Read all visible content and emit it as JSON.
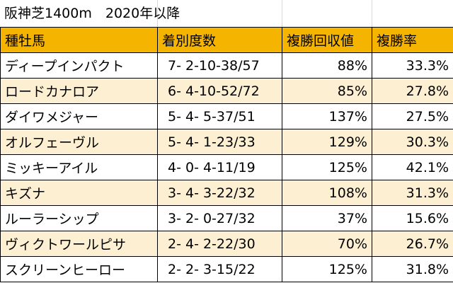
{
  "title": "阪神芝1400m　2020年以降",
  "colors": {
    "header_bg": "#f5b400",
    "alt_row_bg": "#fdf0d2",
    "row_bg": "#ffffff",
    "border": "#000000"
  },
  "table": {
    "headers": [
      "種牡馬",
      "着別度数",
      "複勝回収値",
      "複勝率"
    ],
    "rows": [
      {
        "sire": "ディープインパクト",
        "record": "7- 2-10-38/57",
        "place_return": "88%",
        "place_rate": "33.3%"
      },
      {
        "sire": "ロードカナロア",
        "record": "6- 4-10-52/72",
        "place_return": "85%",
        "place_rate": "27.8%"
      },
      {
        "sire": "ダイワメジャー",
        "record": "5- 4- 5-37/51",
        "place_return": "137%",
        "place_rate": "27.5%"
      },
      {
        "sire": "オルフェーヴル",
        "record": "5- 4- 1-23/33",
        "place_return": "129%",
        "place_rate": "30.3%"
      },
      {
        "sire": "ミッキーアイル",
        "record": "4- 0- 4-11/19",
        "place_return": "125%",
        "place_rate": "42.1%"
      },
      {
        "sire": "キズナ",
        "record": "3- 4- 3-22/32",
        "place_return": "108%",
        "place_rate": "31.3%"
      },
      {
        "sire": "ルーラーシップ",
        "record": "3- 2- 0-27/32",
        "place_return": "37%",
        "place_rate": "15.6%"
      },
      {
        "sire": "ヴィクトワールピサ",
        "record": "2- 4- 2-22/30",
        "place_return": "70%",
        "place_rate": "26.7%"
      },
      {
        "sire": "スクリーンヒーロー",
        "record": "2- 2- 3-15/22",
        "place_return": "125%",
        "place_rate": "31.8%"
      }
    ]
  }
}
